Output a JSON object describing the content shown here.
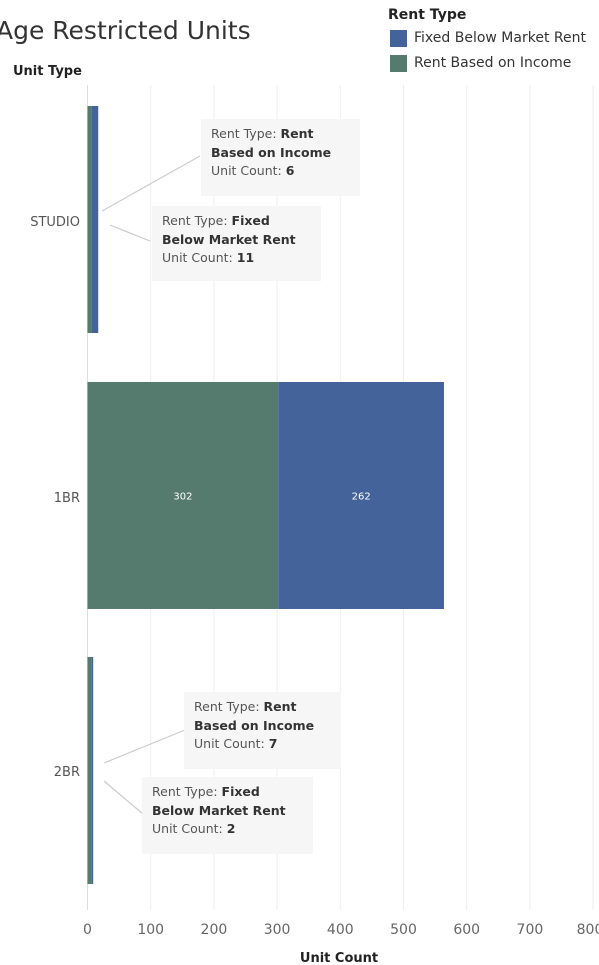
{
  "title": "Age Restricted Units",
  "legend": {
    "title": "Rent Type",
    "items": [
      {
        "label": "Fixed Below Market Rent",
        "color": "#43639a"
      },
      {
        "label": "Rent Based on Income",
        "color": "#557b6e"
      }
    ]
  },
  "tooltips": [
    {
      "key": "Rent Type:",
      "value": "Rent Based on Income",
      "count_key": "Unit Count:",
      "count": "6"
    },
    {
      "key": "Rent Type:",
      "value": "Fixed Below Market Rent",
      "count_key": "Unit Count:",
      "count": "11"
    },
    {
      "key": "Rent Type:",
      "value": "Rent Based on Income",
      "count_key": "Unit Count:",
      "count": "7"
    },
    {
      "key": "Rent Type:",
      "value": "Fixed Below Market Rent",
      "count_key": "Unit Count:",
      "count": "2"
    }
  ],
  "chart_data": {
    "type": "bar",
    "orientation": "horizontal",
    "stacked": true,
    "title": "Age Restricted Units",
    "ylabel": "Unit Type",
    "xlabel": "Unit Count",
    "categories": [
      "STUDIO",
      "1BR",
      "2BR"
    ],
    "series": [
      {
        "name": "Rent Based on Income",
        "color": "#557b6e",
        "values": [
          6,
          302,
          7
        ]
      },
      {
        "name": "Fixed Below Market Rent",
        "color": "#43639a",
        "values": [
          11,
          262,
          2
        ]
      }
    ],
    "bar_labels": [
      [
        null,
        "302",
        null
      ],
      [
        null,
        "262",
        null
      ]
    ],
    "xlim": [
      0,
      800
    ],
    "xticks": [
      0,
      100,
      200,
      300,
      400,
      500,
      600,
      700,
      800
    ],
    "grid": true,
    "legend_position": "top-right"
  }
}
